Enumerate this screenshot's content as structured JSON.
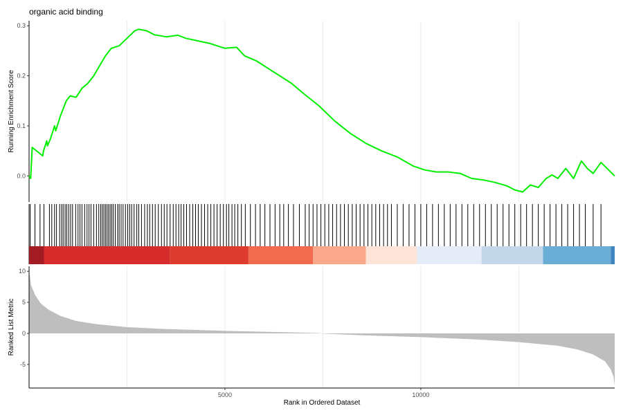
{
  "chart_data": {
    "type": "line",
    "title": "organic acid binding",
    "xlabel": "Rank in Ordered Dataset",
    "xlim": [
      0,
      14950
    ],
    "x_ticks": [
      5000,
      10000
    ],
    "x_gridlines": [
      2500,
      5000,
      7500,
      10000,
      12500
    ],
    "grid": "vertical",
    "legend": "none",
    "line_color": "#00ee00",
    "enrichment": {
      "ylabel": "Running Enrichment Score",
      "ylim": [
        -0.052,
        0.31
      ],
      "y_ticks": [
        0.0,
        0.1,
        0.2,
        0.3
      ],
      "y_tick_labels": [
        "0.0",
        "0.1",
        "0.2",
        "0.3"
      ],
      "x": [
        0,
        40,
        80,
        350,
        370,
        450,
        470,
        550,
        650,
        680,
        800,
        900,
        950,
        1050,
        1200,
        1350,
        1500,
        1650,
        1800,
        1950,
        2100,
        2300,
        2500,
        2700,
        2800,
        3000,
        3200,
        3500,
        3800,
        4000,
        4300,
        4600,
        5000,
        5300,
        5500,
        5800,
        6100,
        6400,
        6700,
        7000,
        7400,
        7800,
        8200,
        8600,
        9000,
        9400,
        9800,
        10100,
        10400,
        10700,
        11000,
        11300,
        11600,
        11900,
        12200,
        12400,
        12600,
        12800,
        13000,
        13200,
        13350,
        13500,
        13700,
        13900,
        14100,
        14250,
        14400,
        14600,
        14950
      ],
      "y": [
        0.0,
        -0.005,
        0.057,
        0.04,
        0.05,
        0.07,
        0.06,
        0.075,
        0.1,
        0.09,
        0.12,
        0.14,
        0.15,
        0.16,
        0.157,
        0.175,
        0.185,
        0.2,
        0.22,
        0.24,
        0.255,
        0.26,
        0.275,
        0.29,
        0.293,
        0.29,
        0.282,
        0.278,
        0.281,
        0.275,
        0.27,
        0.265,
        0.255,
        0.257,
        0.24,
        0.23,
        0.215,
        0.2,
        0.185,
        0.165,
        0.14,
        0.11,
        0.085,
        0.065,
        0.05,
        0.038,
        0.02,
        0.012,
        0.008,
        0.008,
        0.005,
        -0.005,
        -0.008,
        -0.013,
        -0.02,
        -0.028,
        -0.032,
        -0.018,
        -0.023,
        -0.005,
        0.002,
        -0.005,
        0.015,
        -0.005,
        0.03,
        0.015,
        0.005,
        0.027,
        0.0
      ]
    },
    "hits": {
      "x": [
        30,
        150,
        280,
        380,
        520,
        580,
        650,
        700,
        780,
        830,
        870,
        920,
        960,
        1010,
        1060,
        1110,
        1190,
        1250,
        1300,
        1350,
        1420,
        1480,
        1530,
        1580,
        1650,
        1720,
        1780,
        1830,
        1870,
        1910,
        1950,
        1990,
        2030,
        2070,
        2110,
        2150,
        2200,
        2260,
        2300,
        2350,
        2400,
        2460,
        2520,
        2570,
        2620,
        2680,
        2750,
        2800,
        2870,
        2950,
        3020,
        3080,
        3150,
        3220,
        3300,
        3380,
        3450,
        3520,
        3600,
        3680,
        3750,
        3820,
        3880,
        3950,
        4020,
        4100,
        4180,
        4250,
        4320,
        4400,
        4480,
        4560,
        4640,
        4720,
        4800,
        4880,
        4960,
        5040,
        5100,
        5180,
        5250,
        5330,
        5420,
        5520,
        5650,
        5780,
        5900,
        6020,
        6150,
        6280,
        6400,
        6500,
        6620,
        6750,
        6900,
        7050,
        7150,
        7250,
        7350,
        7450,
        7550,
        7650,
        7750,
        7850,
        7950,
        8050,
        8150,
        8250,
        8350,
        8450,
        8550,
        8650,
        8750,
        8850,
        8950,
        9050,
        9150,
        9250,
        9400,
        9550,
        9700,
        9850,
        10000,
        10150,
        10300,
        10450,
        10600,
        10750,
        10900,
        11050,
        11200,
        11350,
        11500,
        11650,
        11800,
        11950,
        12100,
        12250,
        12400,
        12550,
        12700,
        12850,
        13000,
        13150,
        13300,
        13450,
        13600,
        13750,
        13900,
        14050,
        14200,
        14400,
        14600
      ]
    },
    "colorbar": {
      "colors": [
        "#a31c24",
        "#d62c2b",
        "#de3b2f",
        "#f26b4f",
        "#f9a88c",
        "#fde3d8",
        "#e6ecf7",
        "#c3d7e9",
        "#6aaed6",
        "#3f85be",
        "#2f6ba6"
      ],
      "breaks": [
        0,
        380,
        3600,
        5600,
        7250,
        8600,
        9900,
        11550,
        13120,
        14850,
        14950
      ]
    },
    "ranked": {
      "ylabel": "Ranked List Metric",
      "ylim": [
        -8.8,
        10.8
      ],
      "y_ticks": [
        -5,
        0,
        5,
        10
      ],
      "y_tick_labels": [
        "-5",
        "0",
        "5",
        "10"
      ],
      "fill": "#bebebe",
      "x": [
        0,
        50,
        150,
        300,
        500,
        800,
        1200,
        1700,
        2500,
        3500,
        5000,
        6500,
        7400,
        7500,
        8500,
        10000,
        11500,
        12500,
        13500,
        14000,
        14400,
        14700,
        14850,
        14920,
        14950
      ],
      "y": [
        10.2,
        7.8,
        6.2,
        4.8,
        3.8,
        2.8,
        2.0,
        1.5,
        1.0,
        0.7,
        0.4,
        0.2,
        0.05,
        -0.05,
        -0.3,
        -0.6,
        -1.0,
        -1.4,
        -2.0,
        -2.6,
        -3.4,
        -4.5,
        -5.8,
        -7.0,
        -8.4
      ]
    }
  }
}
